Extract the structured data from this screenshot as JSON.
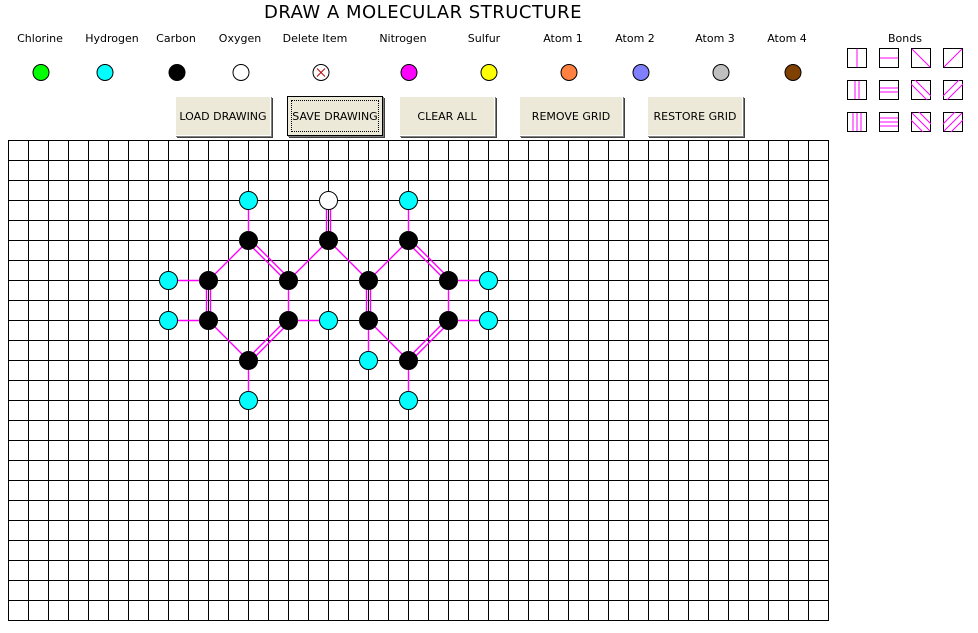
{
  "title": "DRAW A  MOLECULAR  STRUCTURE",
  "palette": {
    "atoms": [
      {
        "label": "Chlorine",
        "color": "#00ff00"
      },
      {
        "label": "Hydrogen",
        "color": "#00ffff"
      },
      {
        "label": "Carbon",
        "color": "#000000"
      },
      {
        "label": "Oxygen",
        "color": "#ffffff"
      },
      {
        "label": "Delete Item",
        "color": "#ffffff",
        "icon": "delete-x-icon"
      },
      {
        "label": "Nitrogen",
        "color": "#ff00ff"
      },
      {
        "label": "Sulfur",
        "color": "#ffff00"
      },
      {
        "label": "Atom 1",
        "color": "#ff8040"
      },
      {
        "label": "Atom 2",
        "color": "#8080ff"
      },
      {
        "label": "Atom 3",
        "color": "#c0c0c0"
      },
      {
        "label": "Atom 4",
        "color": "#804000"
      }
    ]
  },
  "buttons": {
    "load": "LOAD DRAWING",
    "save": "SAVE DRAWING",
    "clear": "CLEAR ALL",
    "remove_grid": "REMOVE GRID",
    "restore_grid": "RESTORE GRID"
  },
  "bonds_panel": {
    "label": "Bonds",
    "tools": [
      {
        "type": "single-vertical-bond-icon"
      },
      {
        "type": "single-horizontal-bond-icon"
      },
      {
        "type": "single-diagonal-down-bond-icon"
      },
      {
        "type": "single-diagonal-up-bond-icon"
      },
      {
        "type": "double-vertical-bond-icon"
      },
      {
        "type": "double-horizontal-bond-icon"
      },
      {
        "type": "double-diagonal-down-bond-icon"
      },
      {
        "type": "double-diagonal-up-bond-icon"
      },
      {
        "type": "triple-vertical-bond-icon"
      },
      {
        "type": "triple-horizontal-bond-icon"
      },
      {
        "type": "triple-diagonal-down-bond-icon"
      },
      {
        "type": "triple-diagonal-up-bond-icon"
      }
    ]
  },
  "grid": {
    "columns": 41,
    "rows": 24,
    "bond_color": "#ff00ff"
  },
  "molecule": {
    "atoms": [
      {
        "element": "Hydrogen",
        "col": 12,
        "row": 3
      },
      {
        "element": "Oxygen",
        "col": 16,
        "row": 3
      },
      {
        "element": "Hydrogen",
        "col": 20,
        "row": 3
      },
      {
        "element": "Carbon",
        "col": 12,
        "row": 5
      },
      {
        "element": "Carbon",
        "col": 16,
        "row": 5
      },
      {
        "element": "Carbon",
        "col": 20,
        "row": 5
      },
      {
        "element": "Hydrogen",
        "col": 8,
        "row": 7
      },
      {
        "element": "Carbon",
        "col": 10,
        "row": 7
      },
      {
        "element": "Carbon",
        "col": 14,
        "row": 7
      },
      {
        "element": "Carbon",
        "col": 18,
        "row": 7
      },
      {
        "element": "Carbon",
        "col": 22,
        "row": 7
      },
      {
        "element": "Hydrogen",
        "col": 24,
        "row": 7
      },
      {
        "element": "Hydrogen",
        "col": 8,
        "row": 9
      },
      {
        "element": "Carbon",
        "col": 10,
        "row": 9
      },
      {
        "element": "Carbon",
        "col": 14,
        "row": 9
      },
      {
        "element": "Hydrogen",
        "col": 16,
        "row": 9
      },
      {
        "element": "Carbon",
        "col": 18,
        "row": 9
      },
      {
        "element": "Carbon",
        "col": 22,
        "row": 9
      },
      {
        "element": "Hydrogen",
        "col": 24,
        "row": 9
      },
      {
        "element": "Hydrogen",
        "col": 18,
        "row": 11
      },
      {
        "element": "Carbon",
        "col": 12,
        "row": 11
      },
      {
        "element": "Carbon",
        "col": 20,
        "row": 11
      },
      {
        "element": "Hydrogen",
        "col": 12,
        "row": 13
      },
      {
        "element": "Hydrogen",
        "col": 20,
        "row": 13
      }
    ],
    "bonds": [
      {
        "from": [
          12,
          3
        ],
        "to": [
          12,
          5
        ],
        "order": 1
      },
      {
        "from": [
          16,
          3
        ],
        "to": [
          16,
          5
        ],
        "order": 2
      },
      {
        "from": [
          20,
          3
        ],
        "to": [
          20,
          5
        ],
        "order": 1
      },
      {
        "from": [
          12,
          5
        ],
        "to": [
          10,
          7
        ],
        "order": 1
      },
      {
        "from": [
          12,
          5
        ],
        "to": [
          14,
          7
        ],
        "order": 2
      },
      {
        "from": [
          16,
          5
        ],
        "to": [
          14,
          7
        ],
        "order": 1
      },
      {
        "from": [
          16,
          5
        ],
        "to": [
          18,
          7
        ],
        "order": 1
      },
      {
        "from": [
          20,
          5
        ],
        "to": [
          18,
          7
        ],
        "order": 1
      },
      {
        "from": [
          20,
          5
        ],
        "to": [
          22,
          7
        ],
        "order": 2
      },
      {
        "from": [
          8,
          7
        ],
        "to": [
          10,
          7
        ],
        "order": 1
      },
      {
        "from": [
          22,
          7
        ],
        "to": [
          24,
          7
        ],
        "order": 1
      },
      {
        "from": [
          10,
          7
        ],
        "to": [
          10,
          9
        ],
        "order": 2
      },
      {
        "from": [
          14,
          7
        ],
        "to": [
          14,
          9
        ],
        "order": 1
      },
      {
        "from": [
          18,
          7
        ],
        "to": [
          18,
          9
        ],
        "order": 2
      },
      {
        "from": [
          22,
          7
        ],
        "to": [
          22,
          9
        ],
        "order": 1
      },
      {
        "from": [
          8,
          9
        ],
        "to": [
          10,
          9
        ],
        "order": 1
      },
      {
        "from": [
          14,
          9
        ],
        "to": [
          16,
          9
        ],
        "order": 1
      },
      {
        "from": [
          22,
          9
        ],
        "to": [
          24,
          9
        ],
        "order": 1
      },
      {
        "from": [
          10,
          9
        ],
        "to": [
          12,
          11
        ],
        "order": 1
      },
      {
        "from": [
          14,
          9
        ],
        "to": [
          12,
          11
        ],
        "order": 2
      },
      {
        "from": [
          18,
          9
        ],
        "to": [
          20,
          11
        ],
        "order": 1
      },
      {
        "from": [
          22,
          9
        ],
        "to": [
          20,
          11
        ],
        "order": 2
      },
      {
        "from": [
          18,
          9
        ],
        "to": [
          18,
          11
        ],
        "order": 1
      },
      {
        "from": [
          12,
          11
        ],
        "to": [
          12,
          13
        ],
        "order": 1
      },
      {
        "from": [
          20,
          11
        ],
        "to": [
          20,
          13
        ],
        "order": 1
      }
    ]
  }
}
